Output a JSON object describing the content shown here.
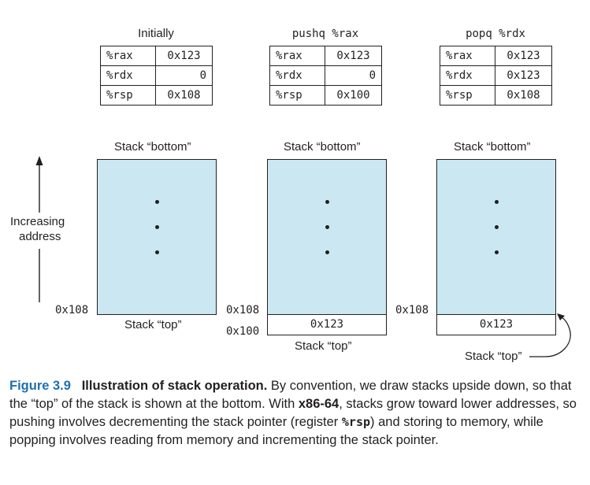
{
  "panels": [
    {
      "heading": "Initially",
      "registers": [
        {
          "name": "%rax",
          "value": "0x123"
        },
        {
          "name": "%rdx",
          "value": "0"
        },
        {
          "name": "%rsp",
          "value": "0x108"
        }
      ],
      "stack_bottom_label": "Stack “bottom”",
      "stack_top_label": "Stack “top”",
      "addr_108": "0x108"
    },
    {
      "heading": "pushq %rax",
      "registers": [
        {
          "name": "%rax",
          "value": "0x123"
        },
        {
          "name": "%rdx",
          "value": "0"
        },
        {
          "name": "%rsp",
          "value": "0x100"
        }
      ],
      "stack_bottom_label": "Stack “bottom”",
      "stack_top_label": "Stack “top”",
      "addr_108": "0x108",
      "addr_100": "0x100",
      "slot_value": "0x123"
    },
    {
      "heading": "popq %rdx",
      "registers": [
        {
          "name": "%rax",
          "value": "0x123"
        },
        {
          "name": "%rdx",
          "value": "0x123"
        },
        {
          "name": "%rsp",
          "value": "0x108"
        }
      ],
      "stack_bottom_label": "Stack “bottom”",
      "stack_top_label": "Stack “top”",
      "addr_108": "0x108",
      "slot_value": "0x123"
    }
  ],
  "axis": {
    "label_line1": "Increasing",
    "label_line2": "address"
  },
  "caption": {
    "number": "Figure 3.9",
    "title": "Illustration of stack operation.",
    "text_1": " By convention, we draw stacks upside down, so that the “top” of the stack is shown at the bottom. With ",
    "arch": "x86-64",
    "text_2": ", stacks grow toward lower addresses, so pushing involves decrementing the stack pointer (register ",
    "reg": "%rsp",
    "text_3": ") and storing to memory, while popping involves reading from memory and incrementing the stack pointer."
  },
  "colors": {
    "stack_fill": "#cbe8f2",
    "figure_number": "#1f6fb0",
    "ink": "#231f20"
  }
}
